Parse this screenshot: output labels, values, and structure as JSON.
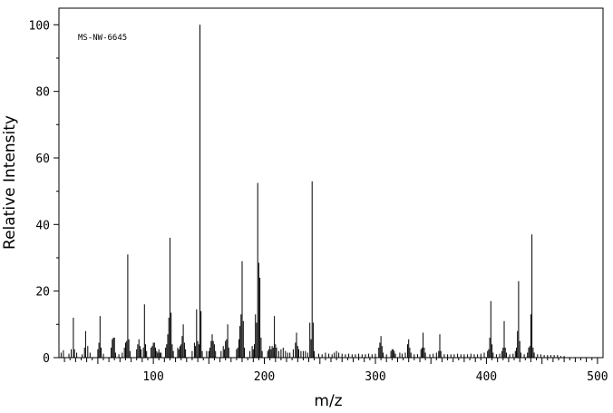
{
  "chart_data": {
    "type": "bar",
    "title": "",
    "annotation": "MS-NW-6645",
    "xlabel": "m/z",
    "ylabel": "Relative Intensity",
    "xlim": [
      15,
      505
    ],
    "ylim": [
      0,
      105
    ],
    "xticks": [
      100,
      200,
      300,
      400,
      500
    ],
    "yticks": [
      0,
      20,
      40,
      60,
      80,
      100
    ],
    "grid": false,
    "legend": "none",
    "bar_color": "#000000",
    "peaks": [
      [
        17,
        1.5
      ],
      [
        19,
        2.2
      ],
      [
        24,
        1.2
      ],
      [
        26,
        2.5
      ],
      [
        28,
        12.0
      ],
      [
        29,
        2.5
      ],
      [
        31,
        1.5
      ],
      [
        36,
        1.0
      ],
      [
        38,
        3.0
      ],
      [
        39,
        8.0
      ],
      [
        41,
        3.5
      ],
      [
        43,
        1.5
      ],
      [
        50,
        2.5
      ],
      [
        51,
        4.5
      ],
      [
        52,
        12.5
      ],
      [
        53,
        3.0
      ],
      [
        55,
        1.2
      ],
      [
        62,
        3.0
      ],
      [
        63,
        5.5
      ],
      [
        64,
        6.0
      ],
      [
        65,
        6.0
      ],
      [
        66,
        1.5
      ],
      [
        69,
        1.0
      ],
      [
        72,
        1.5
      ],
      [
        74,
        3.0
      ],
      [
        75,
        4.5
      ],
      [
        76,
        5.0
      ],
      [
        77,
        31.0
      ],
      [
        78,
        5.5
      ],
      [
        79,
        2.0
      ],
      [
        85,
        2.5
      ],
      [
        86,
        4.0
      ],
      [
        87,
        5.5
      ],
      [
        88,
        3.5
      ],
      [
        89,
        2.5
      ],
      [
        91,
        3.0
      ],
      [
        92,
        16.0
      ],
      [
        93,
        4.0
      ],
      [
        94,
        2.0
      ],
      [
        98,
        3.0
      ],
      [
        99,
        3.5
      ],
      [
        100,
        4.5
      ],
      [
        101,
        4.5
      ],
      [
        102,
        3.0
      ],
      [
        103,
        2.0
      ],
      [
        104,
        1.5
      ],
      [
        105,
        2.5
      ],
      [
        106,
        1.5
      ],
      [
        107,
        1.5
      ],
      [
        111,
        3.0
      ],
      [
        112,
        4.0
      ],
      [
        113,
        7.0
      ],
      [
        114,
        12.0
      ],
      [
        115,
        36.0
      ],
      [
        116,
        13.5
      ],
      [
        117,
        4.0
      ],
      [
        118,
        2.0
      ],
      [
        122,
        3.0
      ],
      [
        123,
        2.5
      ],
      [
        124,
        3.5
      ],
      [
        125,
        4.0
      ],
      [
        126,
        6.5
      ],
      [
        127,
        10.0
      ],
      [
        128,
        4.5
      ],
      [
        129,
        2.5
      ],
      [
        135,
        2.0
      ],
      [
        137,
        4.5
      ],
      [
        138,
        3.5
      ],
      [
        139,
        14.5
      ],
      [
        140,
        5.0
      ],
      [
        141,
        4.0
      ],
      [
        142,
        100.0
      ],
      [
        143,
        14.0
      ],
      [
        144,
        2.0
      ],
      [
        148,
        2.0
      ],
      [
        150,
        2.0
      ],
      [
        151,
        3.0
      ],
      [
        152,
        5.0
      ],
      [
        153,
        7.0
      ],
      [
        154,
        5.0
      ],
      [
        155,
        4.0
      ],
      [
        156,
        2.0
      ],
      [
        161,
        2.0
      ],
      [
        163,
        3.5
      ],
      [
        164,
        2.5
      ],
      [
        165,
        5.0
      ],
      [
        166,
        5.5
      ],
      [
        167,
        10.0
      ],
      [
        168,
        3.0
      ],
      [
        175,
        2.5
      ],
      [
        176,
        3.0
      ],
      [
        177,
        5.5
      ],
      [
        178,
        9.5
      ],
      [
        179,
        13.0
      ],
      [
        180,
        29.0
      ],
      [
        181,
        11.0
      ],
      [
        182,
        3.0
      ],
      [
        187,
        2.0
      ],
      [
        189,
        3.5
      ],
      [
        190,
        2.5
      ],
      [
        191,
        4.0
      ],
      [
        192,
        13.0
      ],
      [
        193,
        10.5
      ],
      [
        194,
        52.5
      ],
      [
        195,
        28.5
      ],
      [
        196,
        24.0
      ],
      [
        197,
        6.0
      ],
      [
        198,
        2.0
      ],
      [
        203,
        2.0
      ],
      [
        204,
        2.5
      ],
      [
        205,
        3.5
      ],
      [
        206,
        2.5
      ],
      [
        207,
        3.5
      ],
      [
        208,
        3.0
      ],
      [
        209,
        12.5
      ],
      [
        210,
        4.0
      ],
      [
        211,
        3.0
      ],
      [
        213,
        2.0
      ],
      [
        215,
        2.5
      ],
      [
        217,
        3.0
      ],
      [
        219,
        2.0
      ],
      [
        221,
        1.5
      ],
      [
        223,
        1.5
      ],
      [
        226,
        2.5
      ],
      [
        228,
        4.5
      ],
      [
        229,
        7.5
      ],
      [
        230,
        3.5
      ],
      [
        231,
        2.5
      ],
      [
        233,
        2.0
      ],
      [
        235,
        2.0
      ],
      [
        237,
        2.0
      ],
      [
        239,
        1.5
      ],
      [
        241,
        10.5
      ],
      [
        242,
        5.5
      ],
      [
        243,
        53.0
      ],
      [
        244,
        10.5
      ],
      [
        245,
        2.0
      ],
      [
        249,
        1.2
      ],
      [
        252,
        1.0
      ],
      [
        255,
        1.5
      ],
      [
        258,
        1.2
      ],
      [
        261,
        1.0
      ],
      [
        263,
        1.5
      ],
      [
        265,
        2.0
      ],
      [
        267,
        1.5
      ],
      [
        270,
        1.2
      ],
      [
        273,
        1.0
      ],
      [
        276,
        1.2
      ],
      [
        279,
        1.0
      ],
      [
        282,
        1.0
      ],
      [
        285,
        1.2
      ],
      [
        288,
        1.0
      ],
      [
        291,
        1.0
      ],
      [
        294,
        1.2
      ],
      [
        297,
        1.0
      ],
      [
        300,
        1.2
      ],
      [
        303,
        3.0
      ],
      [
        304,
        4.5
      ],
      [
        305,
        6.5
      ],
      [
        306,
        3.5
      ],
      [
        307,
        1.5
      ],
      [
        310,
        1.0
      ],
      [
        314,
        2.0
      ],
      [
        315,
        2.5
      ],
      [
        316,
        2.5
      ],
      [
        317,
        2.0
      ],
      [
        318,
        1.2
      ],
      [
        322,
        1.5
      ],
      [
        324,
        1.2
      ],
      [
        327,
        1.5
      ],
      [
        329,
        4.0
      ],
      [
        330,
        5.5
      ],
      [
        331,
        3.0
      ],
      [
        332,
        1.5
      ],
      [
        335,
        1.0
      ],
      [
        338,
        1.0
      ],
      [
        341,
        2.5
      ],
      [
        342,
        3.0
      ],
      [
        343,
        7.5
      ],
      [
        344,
        3.0
      ],
      [
        345,
        1.5
      ],
      [
        349,
        1.0
      ],
      [
        352,
        1.2
      ],
      [
        355,
        1.5
      ],
      [
        357,
        2.0
      ],
      [
        358,
        7.0
      ],
      [
        359,
        2.0
      ],
      [
        362,
        1.0
      ],
      [
        365,
        1.0
      ],
      [
        368,
        1.0
      ],
      [
        371,
        1.0
      ],
      [
        374,
        1.2
      ],
      [
        377,
        1.0
      ],
      [
        380,
        1.0
      ],
      [
        383,
        1.0
      ],
      [
        386,
        1.2
      ],
      [
        389,
        1.0
      ],
      [
        392,
        1.0
      ],
      [
        395,
        1.2
      ],
      [
        398,
        1.5
      ],
      [
        401,
        2.0
      ],
      [
        402,
        2.5
      ],
      [
        403,
        6.0
      ],
      [
        404,
        17.0
      ],
      [
        405,
        4.0
      ],
      [
        406,
        1.5
      ],
      [
        409,
        1.0
      ],
      [
        412,
        1.2
      ],
      [
        414,
        2.0
      ],
      [
        415,
        3.0
      ],
      [
        416,
        11.0
      ],
      [
        417,
        3.0
      ],
      [
        418,
        1.5
      ],
      [
        421,
        1.0
      ],
      [
        424,
        1.2
      ],
      [
        426,
        2.0
      ],
      [
        427,
        3.0
      ],
      [
        428,
        8.0
      ],
      [
        429,
        23.0
      ],
      [
        430,
        5.0
      ],
      [
        431,
        1.5
      ],
      [
        434,
        1.0
      ],
      [
        437,
        1.5
      ],
      [
        438,
        3.0
      ],
      [
        439,
        3.5
      ],
      [
        440,
        13.0
      ],
      [
        441,
        37.0
      ],
      [
        442,
        3.0
      ],
      [
        443,
        1.5
      ],
      [
        446,
        1.0
      ],
      [
        449,
        1.0
      ],
      [
        452,
        0.8
      ],
      [
        455,
        0.8
      ],
      [
        458,
        0.8
      ],
      [
        461,
        0.8
      ],
      [
        464,
        0.8
      ],
      [
        467,
        0.5
      ],
      [
        470,
        0.5
      ]
    ]
  }
}
